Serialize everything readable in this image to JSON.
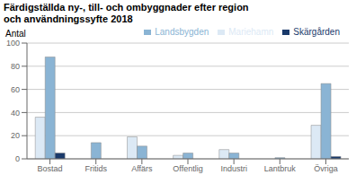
{
  "chart_data": {
    "type": "bar",
    "title": "Färdigställda ny-, till- och ombyggnader efter region",
    "subtitle": "och användningssyfte 2018",
    "ylabel": "Antal",
    "categories": [
      "Bostad",
      "Fritids",
      "Affärs",
      "Offentlig",
      "Industri",
      "Lantbruk",
      "Övriga"
    ],
    "series": [
      {
        "name": "Mariehamn",
        "color": "#dce9f5",
        "values": [
          36,
          0,
          19,
          3,
          8,
          0,
          29
        ]
      },
      {
        "name": "Landsbygden",
        "color": "#8ab4d4",
        "values": [
          88,
          14,
          11,
          5,
          5,
          1,
          65
        ]
      },
      {
        "name": "Skärgården",
        "color": "#1a3a6b",
        "values": [
          5,
          0,
          0,
          0,
          0,
          0,
          2
        ]
      }
    ],
    "ylim": [
      0,
      100
    ],
    "yticks": [
      0,
      20,
      40,
      60,
      80,
      100
    ],
    "grid": true,
    "legend": "top"
  }
}
